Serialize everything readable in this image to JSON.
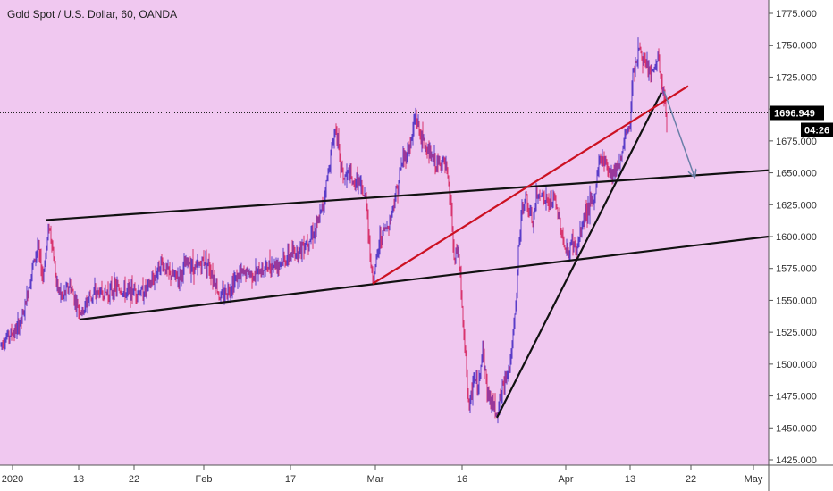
{
  "chart_data": {
    "type": "candlestick",
    "title": "Gold Spot / U.S. Dollar, 60, OANDA",
    "ylim": [
      1420,
      1785
    ],
    "y_ticks": [
      1425,
      1450,
      1475,
      1500,
      1525,
      1550,
      1575,
      1600,
      1625,
      1650,
      1675,
      1700,
      1725,
      1750,
      1775
    ],
    "y_tick_labels": [
      "1425.000",
      "1450.000",
      "1475.000",
      "1500.000",
      "1525.000",
      "1550.000",
      "1575.000",
      "1600.000",
      "1625.000",
      "1650.000",
      "1675.000",
      "1700.000",
      "1725.000",
      "1750.000",
      "1775.000"
    ],
    "x_ticks": [
      "2020",
      "13",
      "22",
      "Feb",
      "17",
      "Mar",
      "16",
      "Apr",
      "13",
      "22",
      "May"
    ],
    "current_price": "1696.949",
    "countdown": "04:26",
    "price_path": [
      [
        0,
        1515
      ],
      [
        8,
        1522
      ],
      [
        18,
        1526
      ],
      [
        26,
        1538
      ],
      [
        36,
        1575
      ],
      [
        42,
        1592
      ],
      [
        48,
        1568
      ],
      [
        55,
        1610
      ],
      [
        58,
        1595
      ],
      [
        64,
        1560
      ],
      [
        70,
        1552
      ],
      [
        78,
        1562
      ],
      [
        86,
        1546
      ],
      [
        92,
        1540
      ],
      [
        100,
        1553
      ],
      [
        110,
        1556
      ],
      [
        120,
        1556
      ],
      [
        130,
        1560
      ],
      [
        140,
        1556
      ],
      [
        150,
        1558
      ],
      [
        160,
        1556
      ],
      [
        170,
        1564
      ],
      [
        180,
        1580
      ],
      [
        190,
        1570
      ],
      [
        200,
        1568
      ],
      [
        210,
        1580
      ],
      [
        220,
        1575
      ],
      [
        230,
        1583
      ],
      [
        240,
        1566
      ],
      [
        246,
        1552
      ],
      [
        255,
        1558
      ],
      [
        265,
        1568
      ],
      [
        275,
        1572
      ],
      [
        285,
        1570
      ],
      [
        295,
        1575
      ],
      [
        305,
        1578
      ],
      [
        315,
        1580
      ],
      [
        325,
        1585
      ],
      [
        335,
        1590
      ],
      [
        345,
        1598
      ],
      [
        355,
        1608
      ],
      [
        362,
        1628
      ],
      [
        368,
        1655
      ],
      [
        372,
        1672
      ],
      [
        376,
        1688
      ],
      [
        380,
        1660
      ],
      [
        385,
        1645
      ],
      [
        390,
        1650
      ],
      [
        395,
        1640
      ],
      [
        400,
        1645
      ],
      [
        405,
        1635
      ],
      [
        410,
        1628
      ],
      [
        415,
        1575
      ],
      [
        418,
        1568
      ],
      [
        425,
        1598
      ],
      [
        430,
        1605
      ],
      [
        435,
        1610
      ],
      [
        440,
        1625
      ],
      [
        445,
        1640
      ],
      [
        450,
        1660
      ],
      [
        455,
        1665
      ],
      [
        460,
        1675
      ],
      [
        465,
        1695
      ],
      [
        470,
        1680
      ],
      [
        475,
        1672
      ],
      [
        480,
        1665
      ],
      [
        485,
        1660
      ],
      [
        490,
        1655
      ],
      [
        495,
        1660
      ],
      [
        500,
        1650
      ],
      [
        505,
        1620
      ],
      [
        508,
        1580
      ],
      [
        512,
        1590
      ],
      [
        515,
        1570
      ],
      [
        518,
        1530
      ],
      [
        522,
        1495
      ],
      [
        525,
        1462
      ],
      [
        530,
        1490
      ],
      [
        535,
        1480
      ],
      [
        540,
        1515
      ],
      [
        545,
        1478
      ],
      [
        550,
        1470
      ],
      [
        556,
        1462
      ],
      [
        562,
        1480
      ],
      [
        566,
        1492
      ],
      [
        570,
        1498
      ],
      [
        574,
        1520
      ],
      [
        578,
        1555
      ],
      [
        580,
        1590
      ],
      [
        584,
        1620
      ],
      [
        588,
        1632
      ],
      [
        592,
        1618
      ],
      [
        596,
        1610
      ],
      [
        600,
        1630
      ],
      [
        605,
        1635
      ],
      [
        610,
        1628
      ],
      [
        615,
        1625
      ],
      [
        620,
        1630
      ],
      [
        626,
        1612
      ],
      [
        632,
        1590
      ],
      [
        636,
        1585
      ],
      [
        640,
        1598
      ],
      [
        645,
        1588
      ],
      [
        650,
        1605
      ],
      [
        655,
        1620
      ],
      [
        660,
        1625
      ],
      [
        665,
        1628
      ],
      [
        670,
        1660
      ],
      [
        675,
        1662
      ],
      [
        680,
        1655
      ],
      [
        685,
        1650
      ],
      [
        690,
        1655
      ],
      [
        695,
        1662
      ],
      [
        700,
        1680
      ],
      [
        705,
        1688
      ],
      [
        708,
        1730
      ],
      [
        712,
        1738
      ],
      [
        716,
        1748
      ],
      [
        720,
        1735
      ],
      [
        724,
        1732
      ],
      [
        728,
        1728
      ],
      [
        732,
        1730
      ],
      [
        736,
        1742
      ],
      [
        740,
        1720
      ],
      [
        744,
        1705
      ],
      [
        746,
        1684
      ]
    ],
    "trendlines": [
      {
        "color": "#111111",
        "from": [
          52,
          1613
        ],
        "to": [
          860,
          1652
        ]
      },
      {
        "color": "#111111",
        "from": [
          90,
          1535
        ],
        "to": [
          860,
          1600
        ]
      },
      {
        "color": "#111111",
        "from": [
          556,
          1458
        ],
        "to": [
          740,
          1713
        ]
      },
      {
        "color": "#cc1122",
        "from": [
          417,
          1563
        ],
        "to": [
          770,
          1718
        ]
      },
      {
        "color": "#6a7fa8",
        "from": [
          743,
          1714
        ],
        "to": [
          777,
          1647
        ],
        "arrow": true
      }
    ],
    "colors": {
      "background": "#f0c8f0",
      "candle_up": "#5a3cc8",
      "candle_down": "#d8346e",
      "axis_panel": "#ffffff",
      "price_tag": "#000000",
      "countdown_tag": "#000000"
    }
  }
}
